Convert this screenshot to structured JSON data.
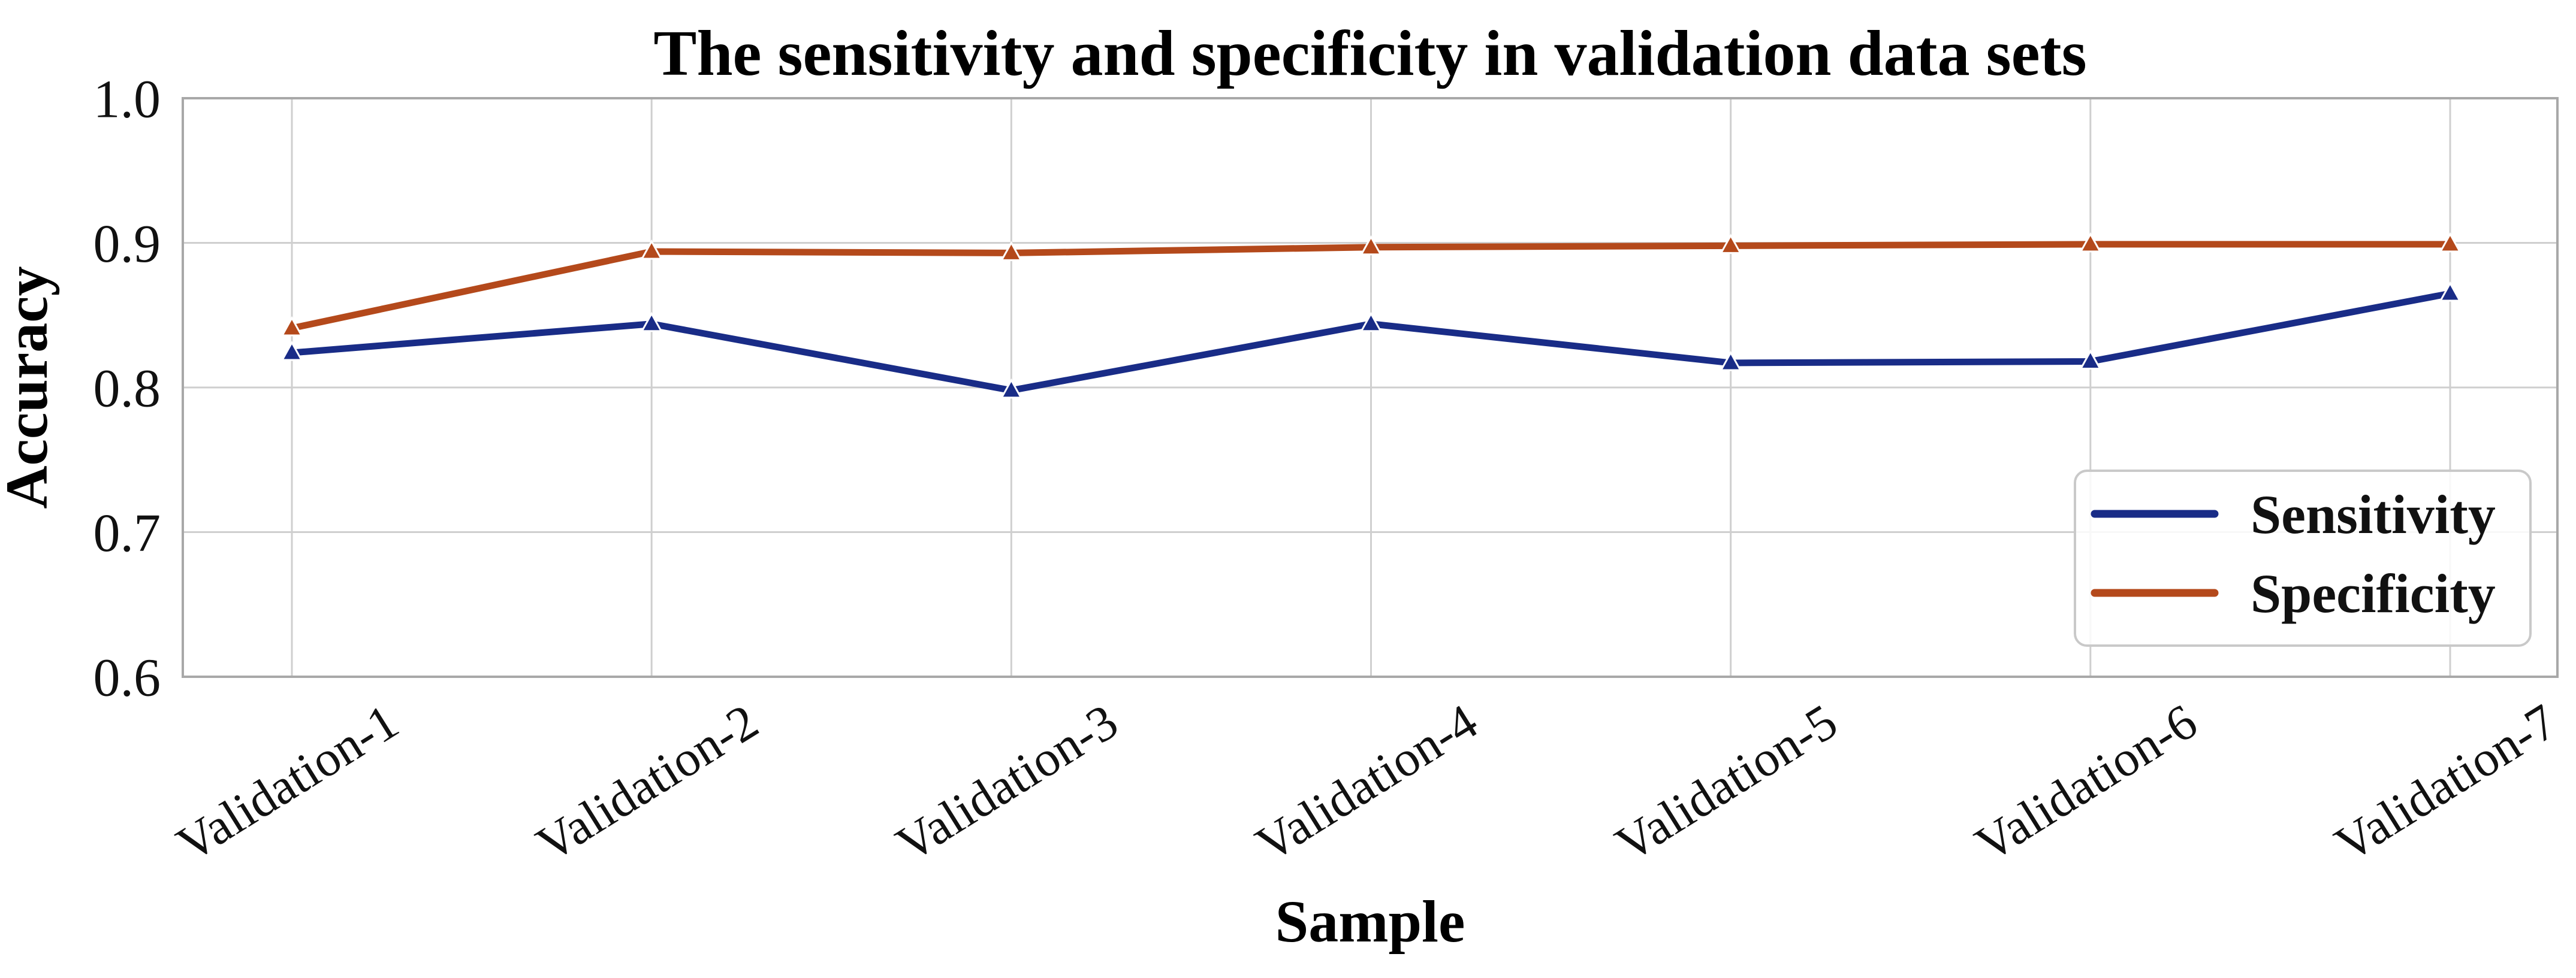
{
  "figure": {
    "background": "#ffffff"
  },
  "chart_data": {
    "type": "line",
    "title": "The sensitivity and specificity in validation data sets",
    "xlabel": "Sample",
    "ylabel": "Accuracy",
    "categories": [
      "Validation-1",
      "Validation-2",
      "Validation-3",
      "Validation-4",
      "Validation-5",
      "Validation-6",
      "Validation-7"
    ],
    "series": [
      {
        "name": "Sensitivity",
        "color": "#192c87",
        "marker": "triangle-up",
        "values": [
          0.824,
          0.844,
          0.798,
          0.844,
          0.817,
          0.818,
          0.865
        ]
      },
      {
        "name": "Specificity",
        "color": "#b4491b",
        "marker": "triangle-up",
        "values": [
          0.841,
          0.894,
          0.893,
          0.897,
          0.898,
          0.899,
          0.899
        ]
      }
    ],
    "ylim": [
      0.6,
      1.0
    ],
    "yticks": [
      0.6,
      0.7,
      0.8,
      0.9,
      1.0
    ],
    "ytick_labels": [
      "0.6",
      "0.7",
      "0.8",
      "0.9",
      "1.0"
    ],
    "x_tick_rotation_deg": -32,
    "grid": true,
    "legend": {
      "position": "lower right",
      "entries": [
        "Sensitivity",
        "Specificity"
      ]
    }
  },
  "style": {
    "grid_color": "#cfcfcf",
    "frame_color": "#a8a8a8",
    "text_color": "#111111",
    "legend_border_color": "#c9c9c9",
    "legend_background": "rgba(255,255,255,0.85)",
    "marker_edge_color": "#ffffff"
  }
}
